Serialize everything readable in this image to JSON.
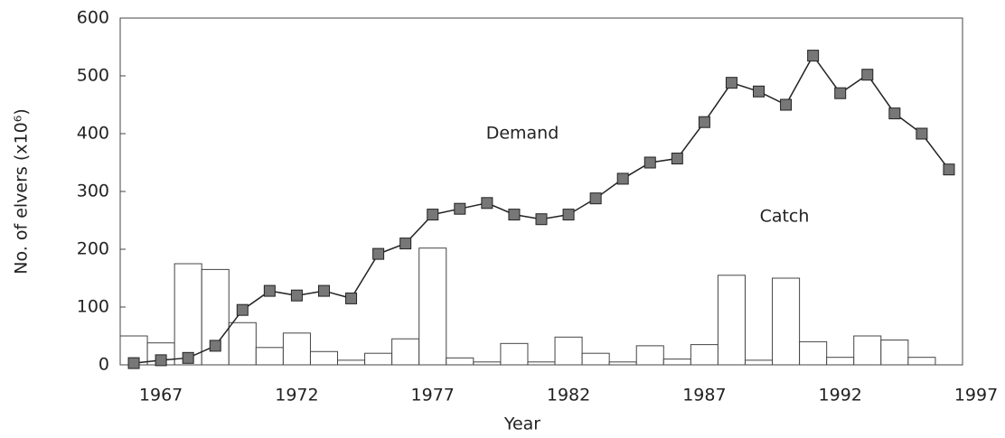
{
  "chart_data": {
    "type": "bar-line",
    "xlabel": "Year",
    "ylabel": "No. of elvers (x10⁶)",
    "x": [
      1966,
      1967,
      1968,
      1969,
      1970,
      1971,
      1972,
      1973,
      1974,
      1975,
      1976,
      1977,
      1978,
      1979,
      1980,
      1981,
      1982,
      1983,
      1984,
      1985,
      1986,
      1987,
      1988,
      1989,
      1990,
      1991,
      1992,
      1993,
      1994,
      1995,
      1996
    ],
    "series": [
      {
        "name": "Catch",
        "type": "bar",
        "color": "#ffffff",
        "values": [
          50,
          38,
          175,
          165,
          73,
          30,
          55,
          23,
          8,
          20,
          45,
          202,
          12,
          5,
          37,
          5,
          48,
          20,
          5,
          33,
          10,
          35,
          155,
          8,
          150,
          40,
          13,
          50,
          43,
          13,
          null
        ]
      },
      {
        "name": "Demand",
        "type": "line",
        "color": "#777777",
        "values": [
          3,
          8,
          12,
          33,
          95,
          128,
          120,
          128,
          115,
          192,
          210,
          260,
          270,
          280,
          260,
          252,
          260,
          288,
          322,
          350,
          357,
          420,
          488,
          473,
          450,
          535,
          470,
          502,
          435,
          400,
          338
        ]
      }
    ],
    "xlim": [
      1965.5,
      1996.5
    ],
    "xticks": [
      1967,
      1972,
      1977,
      1982,
      1987,
      1992,
      1997
    ],
    "ylim": [
      0,
      600
    ],
    "yticks": [
      0,
      100,
      200,
      300,
      400,
      500,
      600
    ]
  }
}
